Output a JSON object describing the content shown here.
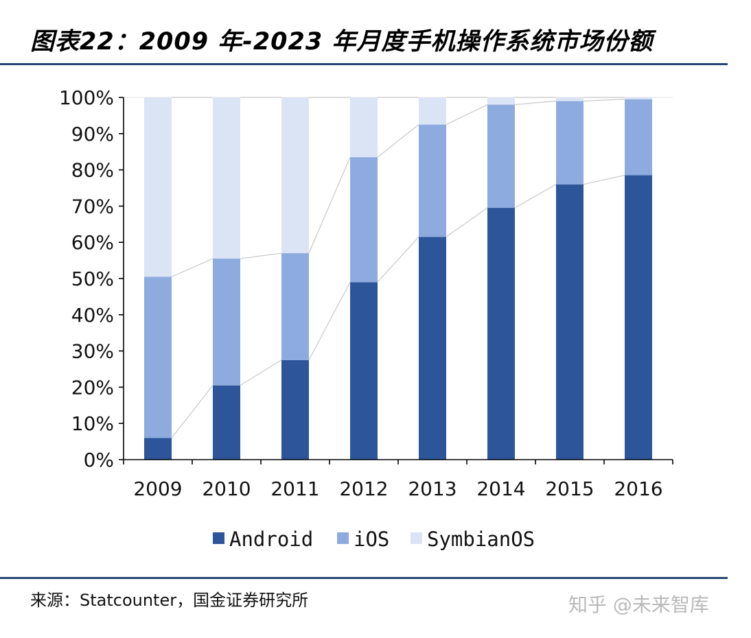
{
  "header": {
    "title": "图表22：2009 年-2023 年月度手机操作系统市场份额"
  },
  "footer": {
    "source": "来源：Statcounter，国金证券研究所",
    "watermark": "知乎 @未来智库"
  },
  "colors": {
    "android": "#2d5599",
    "ios": "#8eabdf",
    "symbian": "#dae4f5",
    "rule": "#24476f",
    "connector": "#c8c8c8"
  },
  "chart_data": {
    "type": "bar",
    "stacked": true,
    "categories": [
      "2009",
      "2010",
      "2011",
      "2012",
      "2013",
      "2014",
      "2015",
      "2016"
    ],
    "series": [
      {
        "name": "Android",
        "values": [
          6,
          20.5,
          27.5,
          49,
          61.5,
          69.5,
          76,
          78.5
        ]
      },
      {
        "name": "iOS",
        "values": [
          44.5,
          35,
          29.5,
          34.5,
          31,
          28.5,
          23,
          21
        ]
      },
      {
        "name": "SymbianOS",
        "values": [
          49.5,
          44.5,
          43,
          16.5,
          7.5,
          2,
          1,
          0.5
        ]
      }
    ],
    "ylim": [
      0,
      100
    ],
    "yticks": [
      "0%",
      "10%",
      "20%",
      "30%",
      "40%",
      "50%",
      "60%",
      "70%",
      "80%",
      "90%",
      "100%"
    ],
    "legend_position": "bottom-center",
    "xlabel": "",
    "ylabel": ""
  }
}
